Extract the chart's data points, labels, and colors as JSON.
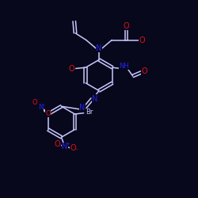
{
  "bg": "#08081c",
  "bc": "#c8c8ff",
  "nc": "#2222ee",
  "oc": "#dd1111",
  "lw": 1.1,
  "fs": 7.0,
  "fss": 6.0,
  "xlim": [
    0,
    10
  ],
  "ylim": [
    0,
    10
  ]
}
